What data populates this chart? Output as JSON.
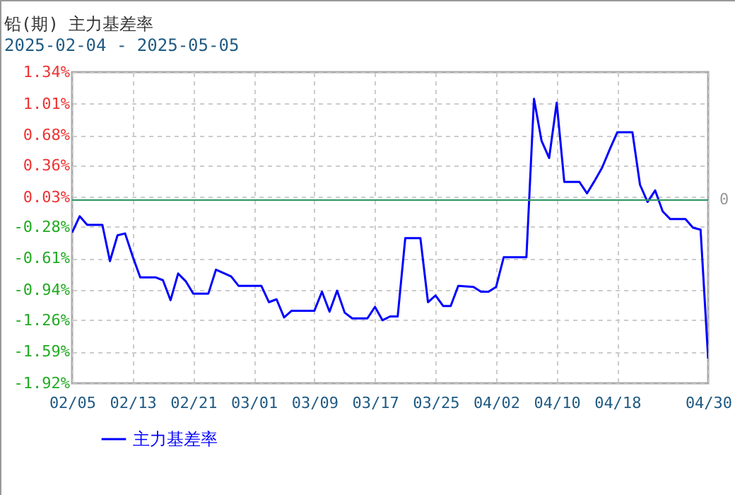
{
  "chart_data": {
    "type": "line",
    "title": "铅(期) 主力基差率",
    "subtitle": "2025-02-04 - 2025-05-05",
    "x": [
      "2025-02-05",
      "2025-02-06",
      "2025-02-07",
      "2025-02-09",
      "2025-02-10",
      "2025-02-11",
      "2025-02-12",
      "2025-02-13",
      "2025-02-14",
      "2025-02-16",
      "2025-02-17",
      "2025-02-18",
      "2025-02-19",
      "2025-02-20",
      "2025-02-21",
      "2025-02-23",
      "2025-02-24",
      "2025-02-26",
      "2025-02-27",
      "2025-03-02",
      "2025-03-03",
      "2025-03-04",
      "2025-03-05",
      "2025-03-06",
      "2025-03-09",
      "2025-03-10",
      "2025-03-11",
      "2025-03-12",
      "2025-03-13",
      "2025-03-14",
      "2025-03-16",
      "2025-03-17",
      "2025-03-18",
      "2025-03-19",
      "2025-03-20",
      "2025-03-21",
      "2025-03-23",
      "2025-03-24",
      "2025-03-25",
      "2025-03-26",
      "2025-03-27",
      "2025-03-28",
      "2025-03-30",
      "2025-03-31",
      "2025-04-01",
      "2025-04-02",
      "2025-04-03",
      "2025-04-06",
      "2025-04-07",
      "2025-04-08",
      "2025-04-09",
      "2025-04-10",
      "2025-04-11",
      "2025-04-13",
      "2025-04-14",
      "2025-04-15",
      "2025-04-16",
      "2025-04-17",
      "2025-04-18",
      "2025-04-20",
      "2025-04-21",
      "2025-04-22",
      "2025-04-23",
      "2025-04-24",
      "2025-04-25",
      "2025-04-27",
      "2025-04-28",
      "2025-04-29",
      "2025-04-30"
    ],
    "series": [
      {
        "name": "主力基差率",
        "color": "#0000ff",
        "values": [
          -0.34,
          -0.17,
          -0.26,
          -0.26,
          -0.64,
          -0.37,
          -0.35,
          -0.59,
          -0.81,
          -0.81,
          -0.84,
          -1.05,
          -0.77,
          -0.85,
          -0.98,
          -0.98,
          -0.73,
          -0.8,
          -0.9,
          -0.9,
          -1.07,
          -1.04,
          -1.23,
          -1.16,
          -1.16,
          -0.96,
          -1.17,
          -0.95,
          -1.18,
          -1.24,
          -1.24,
          -1.12,
          -1.26,
          -1.22,
          -1.22,
          -0.4,
          -0.4,
          -1.07,
          -1.0,
          -1.11,
          -1.11,
          -0.9,
          -0.91,
          -0.96,
          -0.96,
          -0.91,
          -0.6,
          -0.6,
          1.06,
          0.62,
          0.44,
          1.02,
          0.19,
          0.19,
          0.07,
          0.2,
          0.34,
          0.53,
          0.71,
          0.71,
          0.16,
          -0.02,
          0.1,
          -0.12,
          -0.2,
          -0.2,
          -0.29,
          -0.31,
          -1.66
        ]
      }
    ],
    "xlim": [
      "2025-02-05",
      "2025-04-30"
    ],
    "xticks": [
      {
        "value": "2025-02-05",
        "label": "02/05"
      },
      {
        "value": "2025-02-13",
        "label": "02/13"
      },
      {
        "value": "2025-02-21",
        "label": "02/21"
      },
      {
        "value": "2025-03-01",
        "label": "03/01"
      },
      {
        "value": "2025-03-09",
        "label": "03/09"
      },
      {
        "value": "2025-03-17",
        "label": "03/17"
      },
      {
        "value": "2025-03-25",
        "label": "03/25"
      },
      {
        "value": "2025-04-02",
        "label": "04/02"
      },
      {
        "value": "2025-04-10",
        "label": "04/10"
      },
      {
        "value": "2025-04-18",
        "label": "04/18"
      },
      {
        "value": "2025-04-30",
        "label": "04/30"
      }
    ],
    "ylim": [
      -1.92,
      1.34
    ],
    "yticks": [
      {
        "value": -1.92,
        "label": "-1.92%"
      },
      {
        "value": -1.59,
        "label": "-1.59%"
      },
      {
        "value": -1.26,
        "label": "-1.26%"
      },
      {
        "value": -0.94,
        "label": "-0.94%"
      },
      {
        "value": -0.61,
        "label": "-0.61%"
      },
      {
        "value": -0.28,
        "label": "-0.28%"
      },
      {
        "value": 0.03,
        "label": "0.03%"
      },
      {
        "value": 0.36,
        "label": "0.36%"
      },
      {
        "value": 0.68,
        "label": "0.68%"
      },
      {
        "value": 1.01,
        "label": "1.01%"
      },
      {
        "value": 1.34,
        "label": "1.34%"
      }
    ],
    "ref_lines": [
      {
        "axis": "y",
        "value": 0,
        "label": "0",
        "color": "#339966"
      }
    ],
    "grid": true,
    "legend": "bottom left"
  }
}
